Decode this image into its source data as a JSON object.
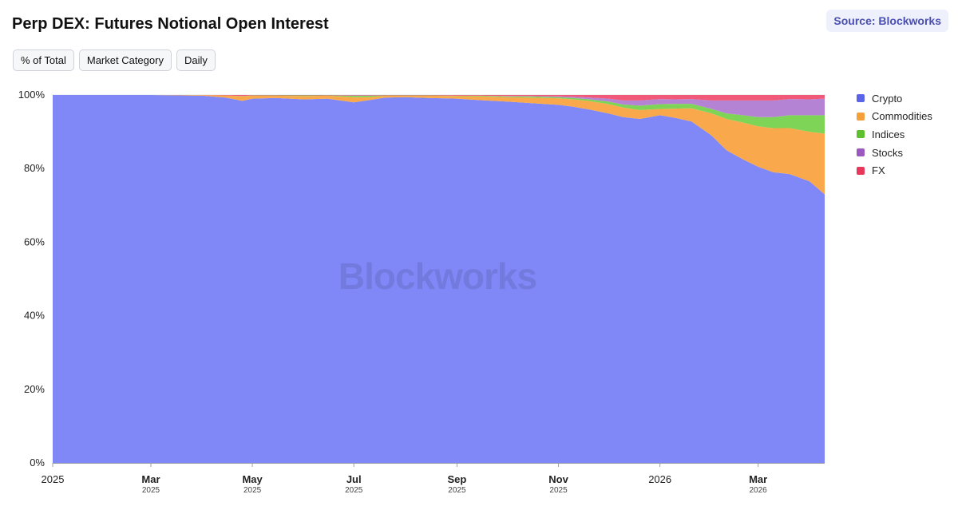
{
  "header": {
    "title": "Perp DEX: Futures Notional Open Interest",
    "source": "Source: Blockworks"
  },
  "controls": [
    "% of Total",
    "Market Category",
    "Daily"
  ],
  "watermark": "Blockworks",
  "chart_data": {
    "type": "area",
    "title": "Perp DEX: Futures Notional Open Interest",
    "stacked": true,
    "normalized": "percent",
    "ylim": [
      0,
      100
    ],
    "y_ticks": [
      "0%",
      "20%",
      "40%",
      "60%",
      "80%",
      "100%"
    ],
    "x_ticks": [
      {
        "label": "2025",
        "sub": "",
        "date": "2025-01-01"
      },
      {
        "label": "Mar",
        "sub": "2025",
        "date": "2025-03-01"
      },
      {
        "label": "May",
        "sub": "2025",
        "date": "2025-05-01"
      },
      {
        "label": "Jul",
        "sub": "2025",
        "date": "2025-07-01"
      },
      {
        "label": "Sep",
        "sub": "2025",
        "date": "2025-09-01"
      },
      {
        "label": "Nov",
        "sub": "2025",
        "date": "2025-11-01"
      },
      {
        "label": "2026",
        "sub": "",
        "date": "2026-01-01"
      },
      {
        "label": "Mar",
        "sub": "2026",
        "date": "2026-03-01"
      }
    ],
    "x": [
      "2025-01-01",
      "2025-02-01",
      "2025-03-01",
      "2025-04-01",
      "2025-04-15",
      "2025-04-25",
      "2025-05-01",
      "2025-05-15",
      "2025-06-01",
      "2025-06-15",
      "2025-07-01",
      "2025-07-10",
      "2025-07-20",
      "2025-08-01",
      "2025-08-15",
      "2025-09-01",
      "2025-09-15",
      "2025-10-01",
      "2025-10-15",
      "2025-11-01",
      "2025-11-10",
      "2025-11-20",
      "2025-12-01",
      "2025-12-10",
      "2025-12-20",
      "2026-01-01",
      "2026-01-10",
      "2026-01-20",
      "2026-02-01",
      "2026-02-10",
      "2026-02-20",
      "2026-03-01",
      "2026-03-10",
      "2026-03-20",
      "2026-04-01",
      "2026-04-10"
    ],
    "series": [
      {
        "name": "Crypto",
        "color": "#8088f8",
        "legend_color": "#5b63e6",
        "values": [
          100,
          100,
          100,
          99.8,
          99.3,
          98.4,
          99.0,
          99.2,
          98.8,
          99.0,
          98.0,
          98.6,
          99.3,
          99.4,
          99.2,
          99.0,
          98.6,
          98.2,
          97.8,
          97.3,
          96.8,
          96.0,
          95.0,
          94.0,
          93.5,
          94.5,
          93.8,
          92.8,
          89.0,
          85.0,
          82.5,
          80.5,
          79.0,
          78.5,
          76.5,
          73.0
        ]
      },
      {
        "name": "Commodities",
        "color": "#f9a94b",
        "legend_color": "#f5a03a",
        "values": [
          0,
          0,
          0,
          0.2,
          0.6,
          1.2,
          0.8,
          0.6,
          0.9,
          0.8,
          1.4,
          0.8,
          0.5,
          0.4,
          0.6,
          0.7,
          1.0,
          1.2,
          1.5,
          1.8,
          2.0,
          2.3,
          2.5,
          2.6,
          2.4,
          1.7,
          2.5,
          3.6,
          6.0,
          8.5,
          10.0,
          11.0,
          12.0,
          12.5,
          13.5,
          16.5
        ]
      },
      {
        "name": "Indices",
        "color": "#7ed456",
        "legend_color": "#5fbf2e",
        "values": [
          0,
          0,
          0,
          0,
          0,
          0.1,
          0.1,
          0.1,
          0.2,
          0.1,
          0.4,
          0.4,
          0.1,
          0.1,
          0.1,
          0.1,
          0.2,
          0.2,
          0.3,
          0.3,
          0.4,
          0.5,
          0.7,
          0.8,
          1.2,
          1.3,
          1.3,
          1.2,
          1.2,
          1.5,
          2.0,
          2.5,
          3.0,
          3.5,
          4.5,
          5.0
        ]
      },
      {
        "name": "Stocks",
        "color": "#b583d4",
        "legend_color": "#9b59c0",
        "values": [
          0,
          0,
          0,
          0,
          0,
          0,
          0,
          0,
          0,
          0,
          0.1,
          0.1,
          0,
          0,
          0,
          0,
          0,
          0.1,
          0.1,
          0.2,
          0.3,
          0.5,
          0.8,
          1.1,
          1.4,
          1.4,
          1.2,
          1.3,
          2.3,
          3.5,
          4.0,
          4.5,
          4.5,
          4.4,
          4.3,
          4.5
        ]
      },
      {
        "name": "FX",
        "color": "#f05a78",
        "legend_color": "#e8385a",
        "values": [
          0,
          0,
          0,
          0,
          0.1,
          0.3,
          0.1,
          0.1,
          0.1,
          0.1,
          0.1,
          0.1,
          0.1,
          0.1,
          0.1,
          0.2,
          0.2,
          0.3,
          0.3,
          0.4,
          0.5,
          0.7,
          1.0,
          1.5,
          1.5,
          1.1,
          1.2,
          1.1,
          1.5,
          1.5,
          1.5,
          1.5,
          1.5,
          1.1,
          1.2,
          1.0
        ]
      }
    ],
    "legend_position": "right",
    "grid": true
  }
}
